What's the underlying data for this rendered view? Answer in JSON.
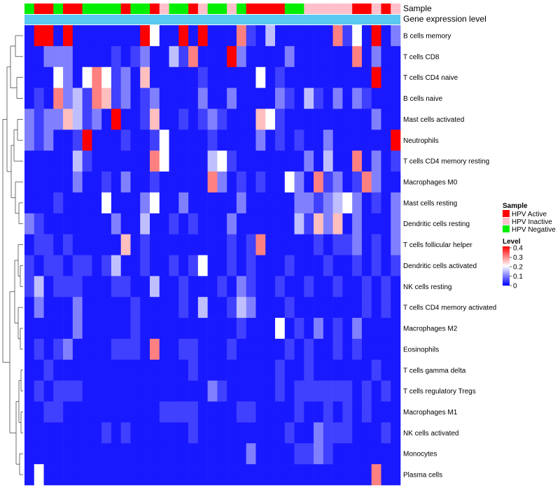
{
  "chart_data": {
    "type": "heatmap",
    "title": "",
    "xlabel": "",
    "ylabel": "",
    "annotation_labels": {
      "sample": "Sample",
      "expression": "Gene expression level"
    },
    "rows": [
      "B cells memory",
      "T cells CD8",
      "T cells CD4 naive",
      "B cells naive",
      "Mast cells activated",
      "Neutrophils",
      "T cells CD4 memory resting",
      "Macrophages M0",
      "Mast cells resting",
      "Dendritic cells resting",
      "T cells follicular helper",
      "Dendritic cells activated",
      "NK cells resting",
      "T cells CD4 memory activated",
      "Macrophages M2",
      "Eosinophils",
      "T cells gamma delta",
      "T cells regulatory  Tregs",
      "Macrophages M1",
      "NK cells activated",
      "Monocytes",
      "Plasma cells"
    ],
    "sample_groups": [
      "HPV Negative",
      "HPV Active",
      "HPV Active",
      "HPV Negative",
      "HPV Active",
      "HPV Active",
      "HPV Negative",
      "HPV Negative",
      "HPV Negative",
      "HPV Negative",
      "HPV Active",
      "HPV Negative",
      "HPV Negative",
      "HPV Active",
      "HPV Inactive",
      "HPV Negative",
      "HPV Negative",
      "HPV Active",
      "HPV Inactive",
      "HPV Negative",
      "HPV Negative",
      "HPV Inactive",
      "HPV Negative",
      "HPV Active",
      "HPV Active",
      "HPV Active",
      "HPV Active",
      "HPV Negative",
      "HPV Negative",
      "HPV Inactive",
      "HPV Inactive",
      "HPV Inactive",
      "HPV Inactive",
      "HPV Inactive",
      "HPV Active",
      "HPV Active",
      "HPV Inactive",
      "HPV Active",
      "HPV Inactive"
    ],
    "values": [
      [
        0.02,
        0.4,
        0.4,
        0.02,
        0.4,
        0.02,
        0.02,
        0.02,
        0.02,
        0.02,
        0.02,
        0.02,
        0.4,
        0.2,
        0.02,
        0.02,
        0.4,
        0.02,
        0.4,
        0.02,
        0.02,
        0.02,
        0.3,
        0.05,
        0.02,
        0.15,
        0.02,
        0.02,
        0.02,
        0.02,
        0.02,
        0.02,
        0.3,
        0.05,
        0.2,
        0.02,
        0.4,
        0.02,
        0.1
      ],
      [
        0.02,
        0.02,
        0.1,
        0.1,
        0.1,
        0.02,
        0.02,
        0.02,
        0.02,
        0.05,
        0.02,
        0.05,
        0.1,
        0.02,
        0.02,
        0.15,
        0.05,
        0.3,
        0.02,
        0.02,
        0.02,
        0.4,
        0.1,
        0.02,
        0.02,
        0.02,
        0.02,
        0.1,
        0.02,
        0.02,
        0.02,
        0.02,
        0.02,
        0.02,
        0.3,
        0.02,
        0.1,
        0.02,
        0.02
      ],
      [
        0.02,
        0.02,
        0.02,
        0.2,
        0.1,
        0.02,
        0.2,
        0.3,
        0.2,
        0.05,
        0.1,
        0.02,
        0.25,
        0.02,
        0.02,
        0.02,
        0.02,
        0.02,
        0.05,
        0.02,
        0.02,
        0.02,
        0.02,
        0.02,
        0.2,
        0.02,
        0.05,
        0.02,
        0.02,
        0.02,
        0.02,
        0.02,
        0.02,
        0.02,
        0.02,
        0.02,
        0.4,
        0.02,
        0.02
      ],
      [
        0.02,
        0.05,
        0.02,
        0.3,
        0.1,
        0.15,
        0.05,
        0.3,
        0.25,
        0.05,
        0.1,
        0.02,
        0.05,
        0.1,
        0.02,
        0.02,
        0.02,
        0.02,
        0.1,
        0.02,
        0.02,
        0.1,
        0.02,
        0.02,
        0.02,
        0.02,
        0.1,
        0.05,
        0.02,
        0.15,
        0.05,
        0.02,
        0.1,
        0.02,
        0.1,
        0.05,
        0.02,
        0.02,
        0.02
      ],
      [
        0.1,
        0.05,
        0.1,
        0.1,
        0.25,
        0.15,
        0.05,
        0.1,
        0.02,
        0.4,
        0.02,
        0.02,
        0.05,
        0.25,
        0.02,
        0.02,
        0.05,
        0.02,
        0.05,
        0.1,
        0.05,
        0.02,
        0.02,
        0.02,
        0.25,
        0.2,
        0.05,
        0.02,
        0.02,
        0.02,
        0.02,
        0.02,
        0.02,
        0.02,
        0.02,
        0.02,
        0.1,
        0.02,
        0.02
      ],
      [
        0.1,
        0.05,
        0.1,
        0.02,
        0.02,
        0.05,
        0.4,
        0.02,
        0.02,
        0.02,
        0.05,
        0.02,
        0.02,
        0.05,
        0.2,
        0.02,
        0.02,
        0.02,
        0.02,
        0.05,
        0.02,
        0.02,
        0.02,
        0.02,
        0.1,
        0.02,
        0.05,
        0.02,
        0.05,
        0.02,
        0.02,
        0.1,
        0.02,
        0.02,
        0.02,
        0.02,
        0.02,
        0.02,
        0.4
      ],
      [
        0.02,
        0.02,
        0.02,
        0.02,
        0.02,
        0.15,
        0.05,
        0.02,
        0.02,
        0.02,
        0.02,
        0.02,
        0.02,
        0.3,
        0.2,
        0.02,
        0.02,
        0.02,
        0.02,
        0.15,
        0.2,
        0.05,
        0.02,
        0.02,
        0.02,
        0.02,
        0.02,
        0.02,
        0.02,
        0.1,
        0.02,
        0.15,
        0.02,
        0.02,
        0.3,
        0.02,
        0.1,
        0.02,
        0.05
      ],
      [
        0.02,
        0.02,
        0.02,
        0.02,
        0.02,
        0.1,
        0.02,
        0.02,
        0.05,
        0.02,
        0.1,
        0.02,
        0.02,
        0.05,
        0.02,
        0.02,
        0.02,
        0.02,
        0.02,
        0.3,
        0.1,
        0.02,
        0.05,
        0.02,
        0.05,
        0.02,
        0.02,
        0.2,
        0.1,
        0.02,
        0.3,
        0.05,
        0.1,
        0.02,
        0.05,
        0.3,
        0.1,
        0.02,
        0.02
      ],
      [
        0.02,
        0.02,
        0.02,
        0.05,
        0.02,
        0.02,
        0.02,
        0.02,
        0.2,
        0.02,
        0.02,
        0.02,
        0.1,
        0.2,
        0.02,
        0.02,
        0.1,
        0.02,
        0.02,
        0.02,
        0.02,
        0.02,
        0.1,
        0.02,
        0.02,
        0.02,
        0.02,
        0.02,
        0.1,
        0.1,
        0.05,
        0.1,
        0.15,
        0.2,
        0.1,
        0.02,
        0.05,
        0.02,
        0.1
      ],
      [
        0.1,
        0.05,
        0.02,
        0.02,
        0.02,
        0.02,
        0.02,
        0.02,
        0.02,
        0.1,
        0.02,
        0.02,
        0.15,
        0.02,
        0.02,
        0.05,
        0.02,
        0.05,
        0.02,
        0.02,
        0.02,
        0.1,
        0.02,
        0.02,
        0.02,
        0.02,
        0.02,
        0.02,
        0.15,
        0.05,
        0.25,
        0.1,
        0.25,
        0.02,
        0.1,
        0.02,
        0.02,
        0.02,
        0.1
      ],
      [
        0.02,
        0.05,
        0.05,
        0.02,
        0.05,
        0.02,
        0.02,
        0.02,
        0.02,
        0.02,
        0.25,
        0.02,
        0.05,
        0.02,
        0.02,
        0.02,
        0.02,
        0.02,
        0.02,
        0.02,
        0.02,
        0.05,
        0.02,
        0.05,
        0.3,
        0.02,
        0.02,
        0.02,
        0.02,
        0.02,
        0.05,
        0.02,
        0.05,
        0.05,
        0.1,
        0.02,
        0.05,
        0.02,
        0.1
      ],
      [
        0.05,
        0.02,
        0.05,
        0.05,
        0.02,
        0.05,
        0.05,
        0.02,
        0.05,
        0.15,
        0.02,
        0.02,
        0.05,
        0.02,
        0.02,
        0.05,
        0.02,
        0.05,
        0.2,
        0.02,
        0.02,
        0.05,
        0.02,
        0.05,
        0.02,
        0.02,
        0.02,
        0.05,
        0.02,
        0.02,
        0.02,
        0.05,
        0.02,
        0.02,
        0.05,
        0.02,
        0.05,
        0.02,
        0.05
      ],
      [
        0.05,
        0.15,
        0.02,
        0.05,
        0.05,
        0.05,
        0.02,
        0.02,
        0.02,
        0.05,
        0.05,
        0.02,
        0.02,
        0.15,
        0.02,
        0.02,
        0.05,
        0.02,
        0.02,
        0.02,
        0.05,
        0.02,
        0.1,
        0.05,
        0.02,
        0.02,
        0.05,
        0.02,
        0.02,
        0.05,
        0.02,
        0.02,
        0.05,
        0.02,
        0.02,
        0.05,
        0.02,
        0.05,
        0.02
      ],
      [
        0.02,
        0.1,
        0.02,
        0.02,
        0.02,
        0.1,
        0.02,
        0.02,
        0.02,
        0.02,
        0.02,
        0.05,
        0.02,
        0.02,
        0.02,
        0.02,
        0.05,
        0.02,
        0.15,
        0.02,
        0.02,
        0.05,
        0.15,
        0.1,
        0.02,
        0.02,
        0.02,
        0.05,
        0.02,
        0.02,
        0.02,
        0.02,
        0.02,
        0.02,
        0.02,
        0.05,
        0.02,
        0.05,
        0.02
      ],
      [
        0.02,
        0.02,
        0.02,
        0.02,
        0.02,
        0.1,
        0.02,
        0.02,
        0.02,
        0.02,
        0.02,
        0.05,
        0.02,
        0.02,
        0.02,
        0.02,
        0.02,
        0.02,
        0.02,
        0.02,
        0.02,
        0.02,
        0.05,
        0.02,
        0.02,
        0.02,
        0.2,
        0.02,
        0.05,
        0.02,
        0.1,
        0.02,
        0.05,
        0.02,
        0.1,
        0.02,
        0.02,
        0.02,
        0.02
      ],
      [
        0.02,
        0.05,
        0.02,
        0.05,
        0.1,
        0.02,
        0.02,
        0.02,
        0.02,
        0.05,
        0.05,
        0.05,
        0.02,
        0.3,
        0.02,
        0.02,
        0.05,
        0.05,
        0.02,
        0.02,
        0.02,
        0.05,
        0.02,
        0.02,
        0.02,
        0.02,
        0.02,
        0.05,
        0.02,
        0.05,
        0.02,
        0.02,
        0.05,
        0.02,
        0.05,
        0.02,
        0.02,
        0.02,
        0.02
      ],
      [
        0.02,
        0.02,
        0.05,
        0.02,
        0.02,
        0.02,
        0.02,
        0.02,
        0.02,
        0.02,
        0.02,
        0.02,
        0.02,
        0.02,
        0.02,
        0.02,
        0.02,
        0.05,
        0.02,
        0.02,
        0.02,
        0.02,
        0.02,
        0.02,
        0.02,
        0.02,
        0.05,
        0.02,
        0.02,
        0.05,
        0.02,
        0.02,
        0.02,
        0.02,
        0.02,
        0.02,
        0.05,
        0.02,
        0.02
      ],
      [
        0.02,
        0.05,
        0.02,
        0.05,
        0.05,
        0.05,
        0.02,
        0.02,
        0.02,
        0.02,
        0.02,
        0.02,
        0.02,
        0.02,
        0.02,
        0.02,
        0.02,
        0.02,
        0.02,
        0.1,
        0.05,
        0.02,
        0.02,
        0.02,
        0.02,
        0.02,
        0.05,
        0.02,
        0.05,
        0.05,
        0.05,
        0.05,
        0.05,
        0.05,
        0.02,
        0.05,
        0.02,
        0.05,
        0.02
      ],
      [
        0.02,
        0.02,
        0.05,
        0.05,
        0.02,
        0.02,
        0.02,
        0.02,
        0.02,
        0.02,
        0.02,
        0.02,
        0.02,
        0.02,
        0.05,
        0.05,
        0.05,
        0.05,
        0.02,
        0.02,
        0.02,
        0.02,
        0.05,
        0.05,
        0.02,
        0.02,
        0.02,
        0.02,
        0.05,
        0.02,
        0.02,
        0.05,
        0.02,
        0.05,
        0.02,
        0.05,
        0.02,
        0.02,
        0.02
      ],
      [
        0.02,
        0.02,
        0.02,
        0.02,
        0.02,
        0.02,
        0.02,
        0.02,
        0.05,
        0.02,
        0.05,
        0.02,
        0.02,
        0.02,
        0.02,
        0.02,
        0.02,
        0.05,
        0.02,
        0.02,
        0.02,
        0.02,
        0.02,
        0.02,
        0.02,
        0.02,
        0.02,
        0.05,
        0.02,
        0.02,
        0.1,
        0.05,
        0.05,
        0.05,
        0.02,
        0.02,
        0.02,
        0.05,
        0.02
      ],
      [
        0.02,
        0.02,
        0.02,
        0.02,
        0.02,
        0.02,
        0.02,
        0.02,
        0.02,
        0.02,
        0.02,
        0.02,
        0.02,
        0.02,
        0.02,
        0.02,
        0.02,
        0.02,
        0.02,
        0.02,
        0.02,
        0.02,
        0.02,
        0.1,
        0.02,
        0.02,
        0.02,
        0.02,
        0.05,
        0.05,
        0.1,
        0.05,
        0.02,
        0.02,
        0.02,
        0.02,
        0.02,
        0.02,
        0.02
      ],
      [
        0.02,
        0.2,
        0.02,
        0.02,
        0.02,
        0.02,
        0.02,
        0.02,
        0.02,
        0.02,
        0.02,
        0.02,
        0.02,
        0.02,
        0.02,
        0.02,
        0.02,
        0.02,
        0.02,
        0.02,
        0.02,
        0.02,
        0.02,
        0.02,
        0.02,
        0.02,
        0.02,
        0.02,
        0.02,
        0.02,
        0.02,
        0.02,
        0.02,
        0.02,
        0.02,
        0.02,
        0.3,
        0.02,
        0.02
      ]
    ],
    "color_scale": {
      "min": 0,
      "max": 0.4,
      "low": "#0000ff",
      "mid": "#ffffff",
      "high": "#ff0000",
      "mid_value": 0.2
    },
    "legend": {
      "placement": "right",
      "sample_title": "Sample",
      "sample_entries": [
        {
          "label": "HPV Active",
          "color": "#ff0000"
        },
        {
          "label": "HPV Inactive",
          "color": "#ffc0cb"
        },
        {
          "label": "HPV Negative",
          "color": "#00ee00"
        }
      ],
      "level_title": "Level",
      "level_ticks": [
        "0.4",
        "0.3",
        "0.2",
        "0.1",
        "0"
      ]
    },
    "expression_bar_color": "#5bc8f0"
  }
}
